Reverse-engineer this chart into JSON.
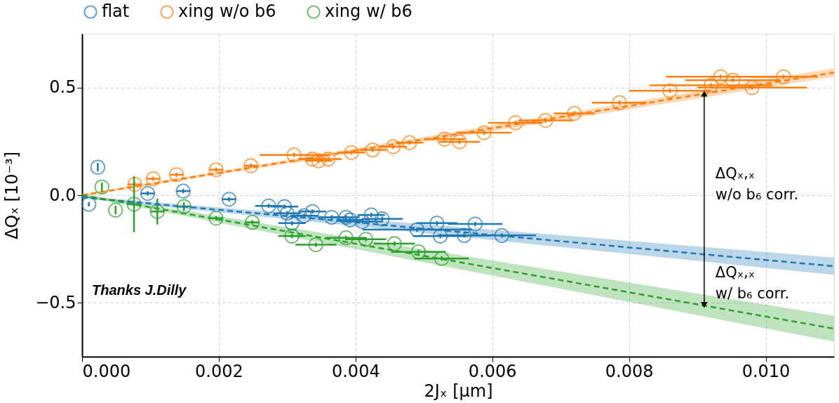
{
  "chart_data": {
    "type": "scatter",
    "xlabel": "2Jₓ   [μm]",
    "ylabel": "ΔQₓ   [10⁻³]",
    "xlim": [
      0,
      0.011
    ],
    "ylim": [
      -0.75,
      0.75
    ],
    "xticks": [
      {
        "value": 0,
        "label": "0.000"
      },
      0.002,
      0.004,
      0.006,
      0.008,
      {
        "value": 0.01,
        "label": "0.010"
      }
    ],
    "yticks": [
      -0.5,
      {
        "value": 0,
        "label": "0.0"
      },
      0.5
    ],
    "grid": true,
    "legend": "top",
    "marker": "circle",
    "series": [
      {
        "name": "flat",
        "color": "#1f77b4",
        "x": [
          0.0001,
          0.00023,
          0.00096,
          0.00148,
          0.00215,
          0.00273,
          0.00296,
          0.003,
          0.00307,
          0.00325,
          0.00337,
          0.00365,
          0.00386,
          0.00392,
          0.0041,
          0.00423,
          0.00439,
          0.0049,
          0.00519,
          0.00524,
          0.00559,
          0.00575,
          0.00614
        ],
        "values": [
          -0.042,
          0.13,
          0.008,
          0.019,
          -0.019,
          -0.05,
          -0.053,
          -0.084,
          -0.13,
          -0.095,
          -0.076,
          -0.103,
          -0.103,
          -0.115,
          -0.122,
          -0.092,
          -0.11,
          -0.16,
          -0.13,
          -0.19,
          -0.187,
          -0.134,
          -0.187
        ],
        "xerrors": [
          null,
          null,
          0.0001,
          0.0001,
          0.0001,
          0.0002,
          0.0002,
          0.0002,
          0.0002,
          0.0002,
          0.0002,
          0.0002,
          0.0002,
          0.0002,
          0.0003,
          0.0002,
          0.0003,
          0.0008,
          0.0003,
          0.0004,
          0.0004,
          0.0004,
          0.0005
        ],
        "errors": [
          0.01,
          0.02,
          0.01,
          0.01,
          0.01,
          0.01,
          0.01,
          0.01,
          0.01,
          0.01,
          0.01,
          0.01,
          0.01,
          0.01,
          0.01,
          0.01,
          0.01,
          0.01,
          0.01,
          0.01,
          0.01,
          0.01,
          0.01
        ]
      },
      {
        "name": "xing w/o b6",
        "color": "#ff7f0e",
        "x": [
          0.00077,
          0.00104,
          0.00138,
          0.00196,
          0.00247,
          0.0031,
          0.00337,
          0.00346,
          0.0036,
          0.00394,
          0.00425,
          0.00455,
          0.00479,
          0.0053,
          0.00552,
          0.00588,
          0.00634,
          0.00678,
          0.0072,
          0.00786,
          0.0086,
          0.0092,
          0.00934,
          0.00952,
          0.0098,
          0.01026
        ],
        "values": [
          0.05,
          0.076,
          0.095,
          0.118,
          0.137,
          0.187,
          0.168,
          0.16,
          0.168,
          0.198,
          0.21,
          0.225,
          0.244,
          0.26,
          0.248,
          0.29,
          0.336,
          0.347,
          0.38,
          0.43,
          0.485,
          0.51,
          0.55,
          0.534,
          0.5,
          0.55
        ],
        "xerrors": [
          0.0001,
          0.0001,
          0.0001,
          0.0001,
          0.0001,
          0.0005,
          0.0002,
          0.0002,
          0.0002,
          0.0002,
          0.0002,
          0.0002,
          0.0002,
          0.0003,
          0.0003,
          0.0004,
          0.0004,
          0.0004,
          0.0003,
          0.0004,
          0.0006,
          0.0009,
          0.0008,
          0.0007,
          0.0008,
          0.0005
        ],
        "errors": [
          0.01,
          0.01,
          0.01,
          0.01,
          0.01,
          0.01,
          0.01,
          0.01,
          0.01,
          0.01,
          0.01,
          0.01,
          0.01,
          0.01,
          0.01,
          0.01,
          0.01,
          0.01,
          0.01,
          0.01,
          0.01,
          0.01,
          0.01,
          0.01,
          0.01,
          0.01
        ]
      },
      {
        "name": "xing w/ b6",
        "color": "#2ca02c",
        "x": [
          0.00029,
          0.00049,
          0.00076,
          0.0011,
          0.00149,
          0.00196,
          0.00249,
          0.00307,
          0.00342,
          0.00386,
          0.00415,
          0.00457,
          0.00492,
          0.00526
        ],
        "values": [
          0.038,
          -0.069,
          -0.042,
          -0.076,
          -0.053,
          -0.107,
          -0.126,
          -0.19,
          -0.23,
          -0.198,
          -0.205,
          -0.225,
          -0.263,
          -0.294
        ],
        "xerrors": [
          null,
          null,
          0.0001,
          0.0001,
          0.0001,
          0.0001,
          0.0001,
          0.0002,
          0.0003,
          0.0003,
          0.0003,
          0.0003,
          0.0004,
          0.0004
        ],
        "errors": [
          0.02,
          0.02,
          0.13,
          0.06,
          0.02,
          0.01,
          0.01,
          0.01,
          0.01,
          0.01,
          0.01,
          0.01,
          0.01,
          0.01
        ]
      },
      {
        "type": "line",
        "line_style": "dashed",
        "marker": "none",
        "color": "#ff7f0e",
        "x": [
          0,
          0.011
        ],
        "values": [
          0.0,
          0.57
        ],
        "lower": [
          -0.005,
          0.55
        ],
        "upper": [
          0.005,
          0.59
        ]
      },
      {
        "type": "line",
        "line_style": "dashed",
        "marker": "none",
        "color": "#1f77b4",
        "x": [
          0,
          0.011
        ],
        "values": [
          -0.01,
          -0.33
        ],
        "lower": [
          -0.015,
          -0.37
        ],
        "upper": [
          -0.005,
          -0.29
        ]
      },
      {
        "type": "line",
        "line_style": "dashed",
        "marker": "none",
        "color": "#2ca02c",
        "x": [
          0,
          0.011
        ],
        "values": [
          0.0,
          -0.62
        ],
        "lower": [
          -0.005,
          -0.68
        ],
        "upper": [
          0.005,
          -0.56
        ]
      }
    ],
    "annotations": [
      "ΔQₓ,ₓ\nw/o b₆ corr.",
      {
        "text": "ΔQₓ,ₓ\nw/ b₆ corr.",
        "x": 0.0091,
        "y": -0.51
      },
      "Thanks J.Dilly"
    ]
  }
}
